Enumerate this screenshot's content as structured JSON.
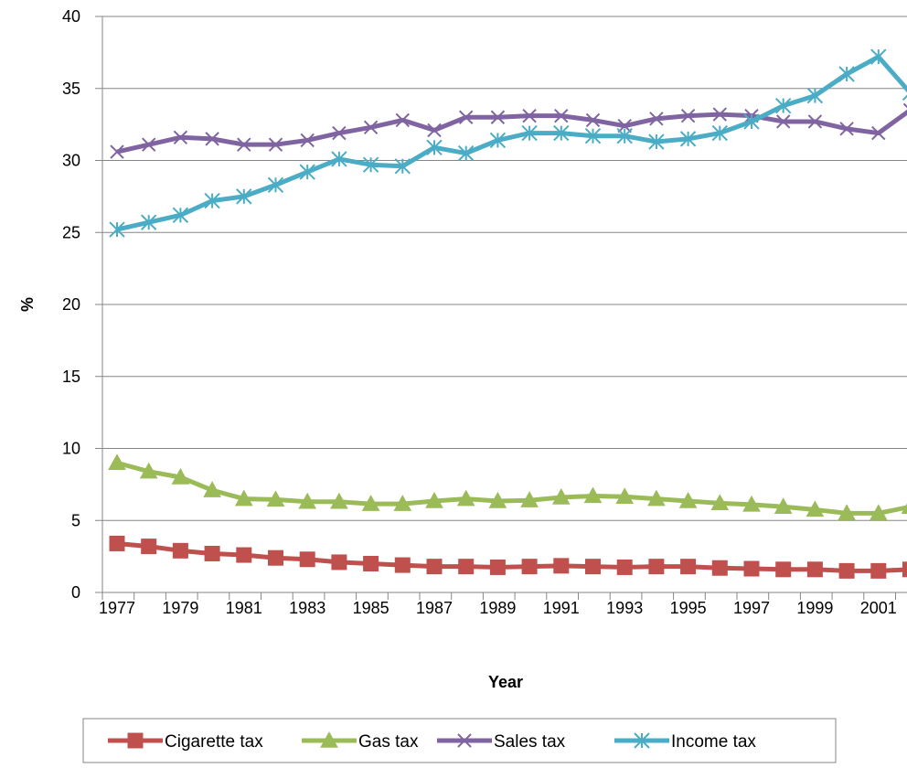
{
  "chart_data": {
    "type": "line",
    "xlabel": "Year",
    "ylabel": "%",
    "ylim": [
      0,
      40
    ],
    "yticks": [
      0,
      5,
      10,
      15,
      20,
      25,
      30,
      35,
      40
    ],
    "x": [
      1977,
      1978,
      1979,
      1980,
      1981,
      1982,
      1983,
      1984,
      1985,
      1986,
      1987,
      1988,
      1989,
      1990,
      1991,
      1992,
      1993,
      1994,
      1995,
      1996,
      1997,
      1998,
      1999,
      2000,
      2001,
      2002
    ],
    "xtick_labels": [
      "1977",
      "1979",
      "1981",
      "1983",
      "1985",
      "1987",
      "1989",
      "1991",
      "1993",
      "1995",
      "1997",
      "1999",
      "2001"
    ],
    "grid": "horizontal",
    "legend_position": "bottom",
    "series": [
      {
        "name": "Cigarette tax",
        "color": "#C0504D",
        "marker": "square",
        "values": [
          3.4,
          3.2,
          2.9,
          2.7,
          2.6,
          2.4,
          2.3,
          2.1,
          2.0,
          1.9,
          1.8,
          1.8,
          1.75,
          1.8,
          1.85,
          1.8,
          1.75,
          1.8,
          1.8,
          1.7,
          1.65,
          1.6,
          1.6,
          1.5,
          1.5,
          1.6
        ]
      },
      {
        "name": "Gas tax",
        "color": "#9BBB59",
        "marker": "triangle",
        "values": [
          9.0,
          8.4,
          8.0,
          7.1,
          6.5,
          6.45,
          6.3,
          6.3,
          6.15,
          6.15,
          6.35,
          6.5,
          6.35,
          6.4,
          6.6,
          6.7,
          6.65,
          6.5,
          6.35,
          6.2,
          6.1,
          5.95,
          5.75,
          5.5,
          5.5,
          5.95
        ]
      },
      {
        "name": "Sales tax",
        "color": "#8064A2",
        "marker": "x",
        "values": [
          30.6,
          31.1,
          31.6,
          31.5,
          31.1,
          31.1,
          31.4,
          31.9,
          32.3,
          32.8,
          32.1,
          33.0,
          33.0,
          33.1,
          33.1,
          32.8,
          32.4,
          32.9,
          33.1,
          33.2,
          33.1,
          32.7,
          32.7,
          32.2,
          31.9,
          33.5
        ]
      },
      {
        "name": "Income tax",
        "color": "#4BACC6",
        "marker": "asterisk",
        "values": [
          25.2,
          25.7,
          26.2,
          27.2,
          27.5,
          28.3,
          29.2,
          30.1,
          29.7,
          29.6,
          30.9,
          30.5,
          31.4,
          31.9,
          31.9,
          31.7,
          31.7,
          31.3,
          31.5,
          31.9,
          32.7,
          33.8,
          34.5,
          36.0,
          37.2,
          34.7
        ]
      }
    ]
  }
}
